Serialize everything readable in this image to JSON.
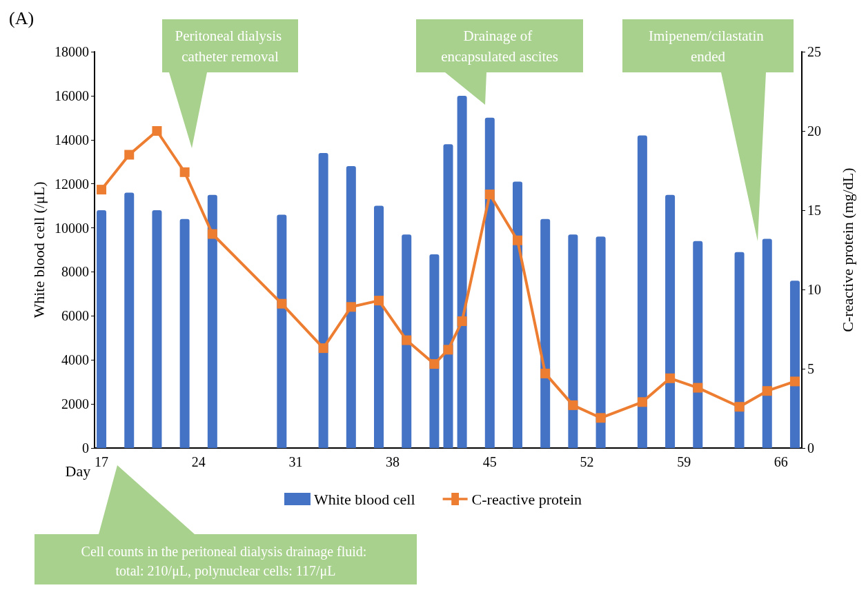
{
  "chart_data": {
    "type": "bar",
    "title": "(A)",
    "xlabel": "Day",
    "ylabel": "White blood cell (/μL)",
    "y2label": "C-reactive protein (mg/dL)",
    "xlim": [
      16.5,
      67.5
    ],
    "xticks": [
      17,
      24,
      31,
      38,
      45,
      52,
      59,
      66
    ],
    "ylim": [
      0,
      18000
    ],
    "yticks": [
      0,
      2000,
      4000,
      6000,
      8000,
      10000,
      12000,
      14000,
      16000,
      18000
    ],
    "y2lim": [
      0,
      25
    ],
    "y2ticks": [
      0,
      5,
      10,
      15,
      20,
      25
    ],
    "x": [
      17,
      19,
      21,
      23,
      25,
      30,
      33,
      35,
      37,
      39,
      41,
      42,
      43,
      45,
      47,
      49,
      51,
      53,
      56,
      58,
      60,
      63,
      65,
      67
    ],
    "series": [
      {
        "name": "White blood cell",
        "color": "#4472c4",
        "values": [
          10800,
          11600,
          10800,
          10400,
          11500,
          10600,
          13400,
          12800,
          11000,
          9700,
          8800,
          13800,
          16000,
          15000,
          12100,
          10400,
          9700,
          9600,
          14200,
          11500,
          9400,
          8900,
          9500,
          7600
        ]
      },
      {
        "name": "C-reactive protein",
        "type": "line",
        "axis": "y2",
        "color": "#ed7d31",
        "values": [
          16.3,
          18.5,
          20.0,
          17.4,
          13.5,
          9.1,
          6.3,
          8.9,
          9.3,
          6.8,
          5.3,
          6.2,
          8.0,
          16.0,
          13.1,
          4.7,
          2.7,
          1.9,
          2.9,
          4.4,
          3.8,
          2.6,
          3.6,
          4.2
        ]
      }
    ],
    "marker": "square",
    "line_style": "solid",
    "grid": false,
    "legend": "bottom",
    "annotations": [
      "Peritoneal dialysis catheter removal",
      "Drainage of encapsulated ascites",
      "Imipenem/cilastatin ended",
      "Cell counts in the peritoneal dialysis drainage fluid: total: 210/μL, polynuclear cells: 117/μL"
    ]
  }
}
